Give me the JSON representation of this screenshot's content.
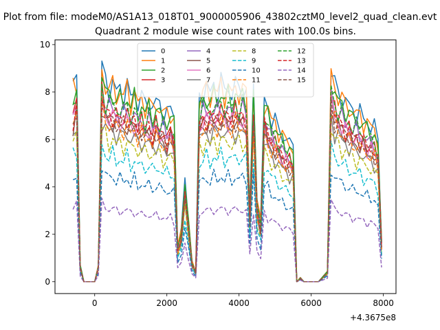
{
  "chart_data": {
    "type": "line",
    "suptitle": "Plot from file: modeM0/AS1A13_018T01_9000005906_43802cztM0_level2_quad_clean.evt",
    "title": "Quadrant 2 module wise count rates with 100.0s bins.",
    "xlabel": "",
    "ylabel": "",
    "x_offset_label": "+4.3675e8",
    "xlim": [
      -1100,
      8350
    ],
    "ylim": [
      -0.5,
      10.2
    ],
    "x_ticks": [
      0,
      2000,
      4000,
      6000,
      8000
    ],
    "x_tick_labels": [
      "0",
      "2000",
      "4000",
      "6000",
      "8000"
    ],
    "y_ticks": [
      0,
      2,
      4,
      6,
      8,
      10
    ],
    "y_tick_labels": [
      "0",
      "2",
      "4",
      "6",
      "8",
      "10"
    ],
    "grid": false,
    "legend_placement": "top-center",
    "legend_columns": 4,
    "x_segments": [
      {
        "start": -600,
        "step": 100,
        "count": 69
      },
      {
        "start": 6450,
        "step": 100,
        "count": 16
      }
    ],
    "series": [
      {
        "name": "0",
        "color": "#1f77b4",
        "dash": "solid",
        "amp": 8.6
      },
      {
        "name": "1",
        "color": "#ff7f0e",
        "dash": "solid",
        "amp": 8.5
      },
      {
        "name": "2",
        "color": "#2ca02c",
        "dash": "solid",
        "amp": 8.2
      },
      {
        "name": "3",
        "color": "#d62728",
        "dash": "solid",
        "amp": 7.4
      },
      {
        "name": "4",
        "color": "#9467bd",
        "dash": "solid",
        "amp": 7.6
      },
      {
        "name": "5",
        "color": "#8c564b",
        "dash": "solid",
        "amp": 7.0
      },
      {
        "name": "6",
        "color": "#e377c2",
        "dash": "solid",
        "amp": 7.2
      },
      {
        "name": "7",
        "color": "#7f7f7f",
        "dash": "solid",
        "amp": 6.6
      },
      {
        "name": "8",
        "color": "#bcbd22",
        "dash": "dashed",
        "amp": 6.2
      },
      {
        "name": "9",
        "color": "#17becf",
        "dash": "dashed",
        "amp": 5.5
      },
      {
        "name": "10",
        "color": "#1f77b4",
        "dash": "dashed",
        "amp": 4.6
      },
      {
        "name": "11",
        "color": "#ff7f0e",
        "dash": "dashed",
        "amp": 6.9
      },
      {
        "name": "12",
        "color": "#2ca02c",
        "dash": "dashed",
        "amp": 7.8
      },
      {
        "name": "13",
        "color": "#d62728",
        "dash": "dashed",
        "amp": 7.3
      },
      {
        "name": "14",
        "color": "#9467bd",
        "dash": "dashed",
        "amp": 3.2
      },
      {
        "name": "15",
        "color": "#8c564b",
        "dash": "dashed",
        "amp": 7.1
      }
    ],
    "profile": [
      0.95,
      1.0,
      0.08,
      0.0,
      0.0,
      0.0,
      0.0,
      0.08,
      1.05,
      0.98,
      0.95,
      0.97,
      0.93,
      0.94,
      0.92,
      0.95,
      0.9,
      0.93,
      0.88,
      0.9,
      0.87,
      0.89,
      0.85,
      0.88,
      0.86,
      0.84,
      0.82,
      0.85,
      0.8,
      0.18,
      0.25,
      0.5,
      0.3,
      0.1,
      0.05,
      0.9,
      0.93,
      0.95,
      0.92,
      0.96,
      0.93,
      0.97,
      0.94,
      0.95,
      0.93,
      0.96,
      0.94,
      0.95,
      0.93,
      0.35,
      0.95,
      0.4,
      0.3,
      0.9,
      0.85,
      0.8,
      0.78,
      0.75,
      0.72,
      0.7,
      0.68,
      0.66,
      0.0,
      0.02,
      0.0,
      0.0,
      0.0,
      0.0,
      0.0,
      0.05,
      1.04,
      0.96,
      0.93,
      0.9,
      0.88,
      0.86,
      0.84,
      0.83,
      0.82,
      0.8,
      0.78,
      0.77,
      0.75,
      0.7,
      0.2
    ]
  }
}
